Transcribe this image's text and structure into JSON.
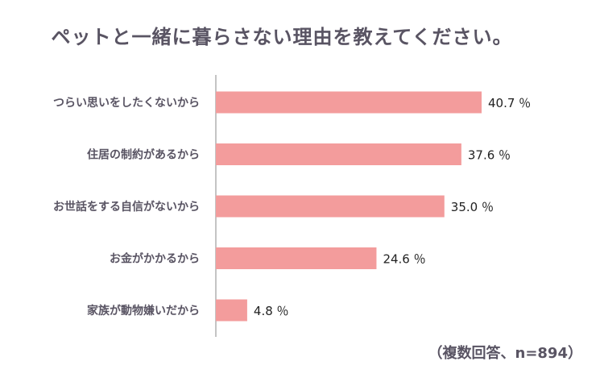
{
  "title": "ペットと一緒に暮らさない理由を教えてください。",
  "note": "（複数回答、n=894）",
  "colors": {
    "bar": "#f39c9c",
    "axis": "#888888",
    "text": "#595463"
  },
  "chart_data": {
    "type": "bar",
    "orientation": "horizontal",
    "categories": [
      "つらい思いをしたくないから",
      "住居の制約があるから",
      "お世話をする自信がないから",
      "お金がかかるから",
      "家族が動物嫌いだから"
    ],
    "values": [
      40.7,
      37.6,
      35.0,
      24.6,
      4.8
    ],
    "value_labels": [
      "40.7 ％",
      "37.6 ％",
      "35.0 ％",
      "24.6 ％",
      "4.8 ％"
    ],
    "unit": "％",
    "xlim": [
      0,
      50
    ],
    "grid": false,
    "legend": "none"
  }
}
